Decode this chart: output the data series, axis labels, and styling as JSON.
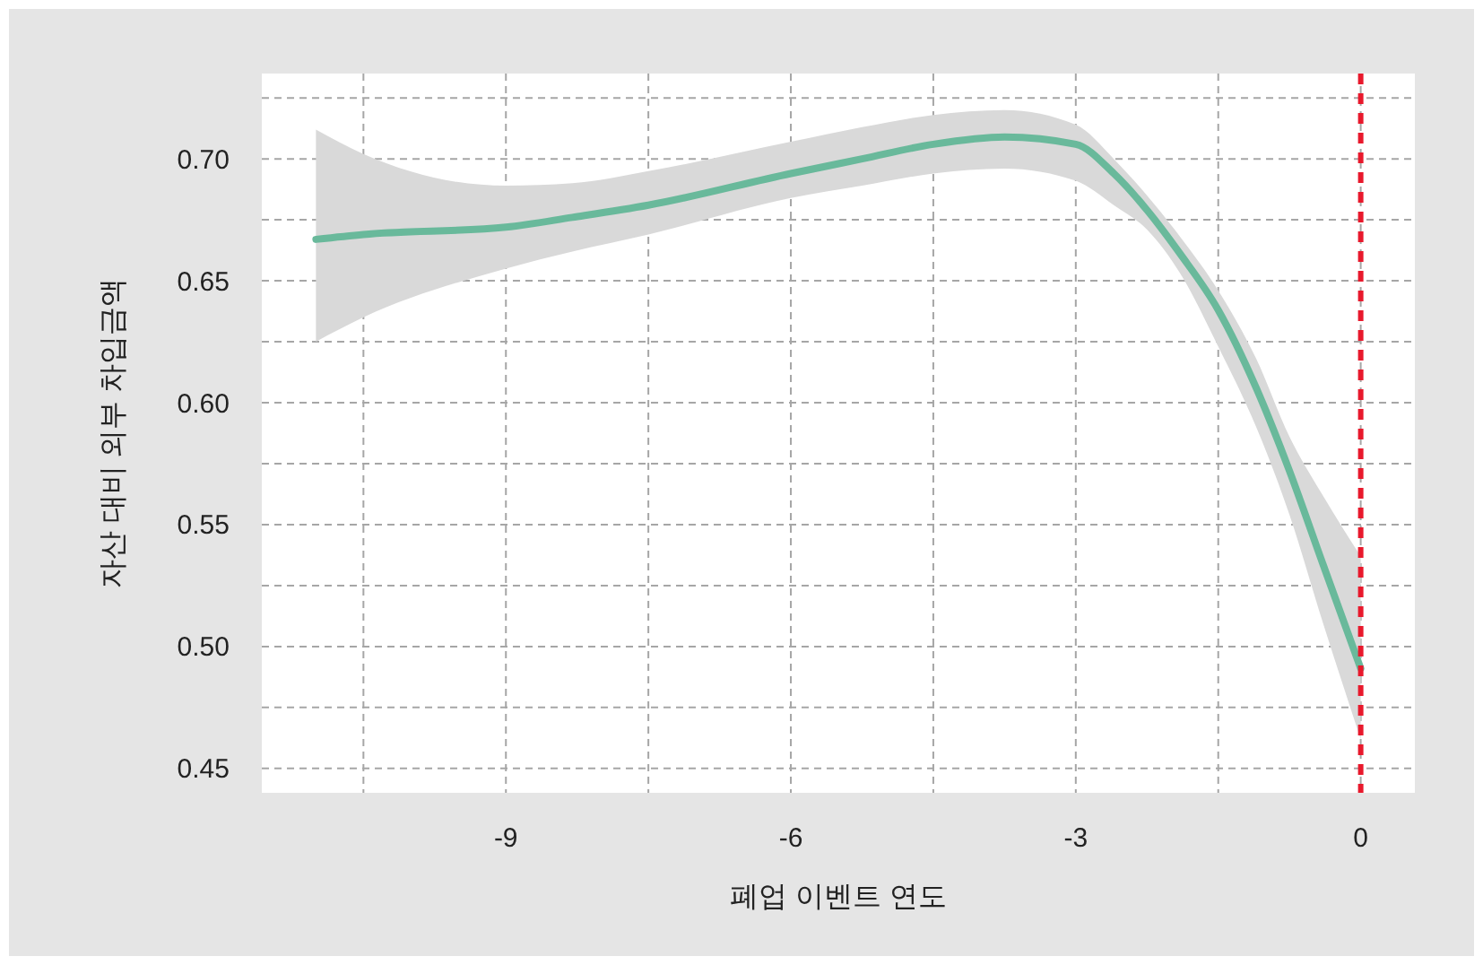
{
  "chart_data": {
    "type": "line",
    "xlabel": "폐업 이벤트 연도",
    "ylabel": "자산 대비 외부 차입금액",
    "xlim": [
      -11.57,
      0.57
    ],
    "xticks": [
      -9,
      -6,
      -3,
      0
    ],
    "ylim": [
      0.44,
      0.735
    ],
    "yticks": [
      0.45,
      {
        "value": 0.5,
        "label": "0.50"
      },
      0.55,
      {
        "value": 0.6,
        "label": "0.60"
      },
      0.65,
      {
        "value": 0.7,
        "label": "0.70"
      }
    ],
    "grid": true,
    "series": [
      {
        "color": "#69b99b",
        "x": [
          -11.0,
          -10.5,
          -9,
          -8.3,
          -7.5,
          -6,
          -5.25,
          -4.5,
          -3.75,
          -3,
          -2.6,
          -2.25,
          -1.9,
          -1.5,
          -1.1,
          -0.75,
          -0.4,
          0
        ],
        "values": [
          0.667,
          0.669,
          0.672,
          0.676,
          0.681,
          0.694,
          0.7,
          0.706,
          0.709,
          0.706,
          0.694,
          0.679,
          0.661,
          0.638,
          0.606,
          0.572,
          0.534,
          0.491
        ],
        "lower": [
          0.625,
          0.635,
          0.655,
          0.662,
          0.669,
          0.684,
          0.689,
          0.694,
          0.696,
          0.691,
          0.681,
          0.671,
          0.653,
          0.623,
          0.59,
          0.554,
          0.51,
          0.462
        ],
        "upper": [
          0.712,
          0.702,
          0.689,
          0.69,
          0.695,
          0.707,
          0.713,
          0.718,
          0.72,
          0.714,
          0.7,
          0.685,
          0.668,
          0.646,
          0.618,
          0.586,
          0.562,
          0.537
        ]
      }
    ],
    "ref_lines": [
      {
        "axis": "x",
        "value": 0,
        "color": "#e8192c",
        "line_style": "dashed"
      }
    ]
  }
}
